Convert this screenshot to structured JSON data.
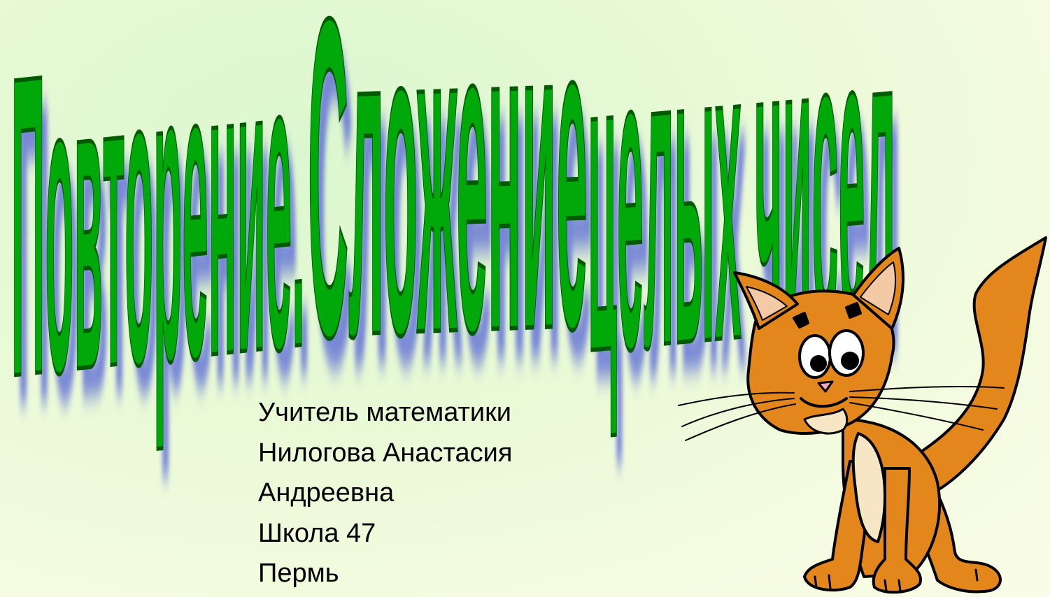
{
  "slide": {
    "title": "Повторение. Сложение целых чисел",
    "credits": [
      "Учитель математики",
      "Нилогова Анастасия",
      "Андреевна",
      "Школа 47",
      "Пермь"
    ],
    "colors": {
      "title_fill": "#009a08",
      "title_outline": "#005a00",
      "title_shadow": "#5b6bd6",
      "cat_fur": "#e3861c",
      "cat_belly": "#f7e6c4",
      "background": "#e8f9d6"
    },
    "illustration": "cartoon-cat"
  }
}
